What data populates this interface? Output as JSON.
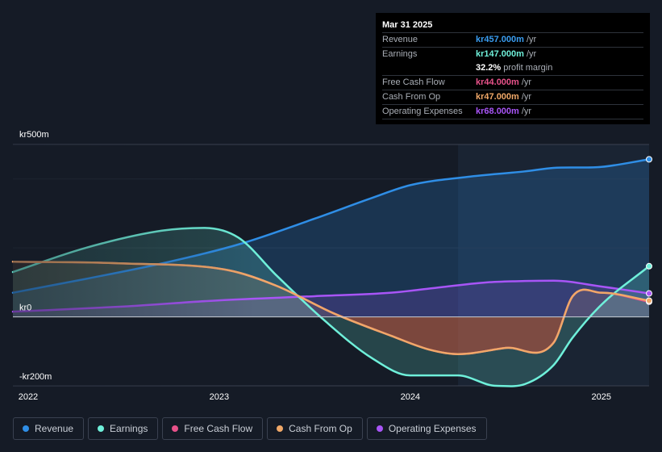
{
  "tooltip": {
    "date": "Mar 31 2025",
    "rows": [
      {
        "label": "Revenue",
        "value": "kr457.000m",
        "unit": "/yr",
        "color": "#3a9df0"
      },
      {
        "label": "Earnings",
        "value": "kr147.000m",
        "unit": "/yr",
        "color": "#6ff0da"
      },
      {
        "label": "",
        "value": "32.2%",
        "unit": "profit margin",
        "color": "#ffffff"
      },
      {
        "label": "Free Cash Flow",
        "value": "kr44.000m",
        "unit": "/yr",
        "color": "#e8528a"
      },
      {
        "label": "Cash From Op",
        "value": "kr47.000m",
        "unit": "/yr",
        "color": "#f0a868"
      },
      {
        "label": "Operating Expenses",
        "value": "kr68.000m",
        "unit": "/yr",
        "color": "#a855f7"
      }
    ]
  },
  "legend": [
    {
      "label": "Revenue",
      "color": "#2f8ee6"
    },
    {
      "label": "Earnings",
      "color": "#6ff0da"
    },
    {
      "label": "Free Cash Flow",
      "color": "#e8528a"
    },
    {
      "label": "Cash From Op",
      "color": "#f0a868"
    },
    {
      "label": "Operating Expenses",
      "color": "#a855f7"
    }
  ],
  "chart_data": {
    "type": "area",
    "title": "",
    "currency": "kr",
    "y_tick_labels": [
      "kr500m",
      "kr0",
      "-kr200m"
    ],
    "x_tick_labels": [
      "2022",
      "2023",
      "2024",
      "2025"
    ],
    "ylim": [
      -200,
      500
    ],
    "xlim": [
      2021.92,
      2025.25
    ],
    "x_ticks": [
      2022,
      2023,
      2024,
      2025
    ],
    "y_ticks": [
      500,
      0,
      -200
    ],
    "highlight_start": 2024.25,
    "series": [
      {
        "name": "Revenue",
        "color": "#2f8ee6",
        "x": [
          2021.92,
          2022.3,
          2022.7,
          2023.1,
          2023.5,
          2023.8,
          2024.0,
          2024.3,
          2024.6,
          2024.75,
          2025.0,
          2025.25
        ],
        "values": [
          70,
          110,
          155,
          210,
          285,
          345,
          382,
          406,
          422,
          432,
          435,
          457
        ]
      },
      {
        "name": "Earnings",
        "color": "#6ff0da",
        "x": [
          2021.92,
          2022.3,
          2022.7,
          2022.92,
          2023.1,
          2023.3,
          2023.55,
          2023.8,
          2024.0,
          2024.25,
          2024.45,
          2024.6,
          2024.75,
          2024.85,
          2025.0,
          2025.25
        ],
        "values": [
          130,
          200,
          250,
          258,
          230,
          120,
          -10,
          -120,
          -170,
          -170,
          -200,
          -195,
          -140,
          -60,
          35,
          147
        ]
      },
      {
        "name": "Free Cash Flow",
        "color": "#e8528a",
        "x": [
          2021.92,
          2022.5,
          2023.05,
          2023.3,
          2023.6,
          2023.9,
          2024.1,
          2024.25,
          2024.5,
          2024.75,
          2024.85,
          2025.0,
          2025.25
        ],
        "values": [
          160,
          155,
          135,
          90,
          10,
          -55,
          -95,
          -108,
          -90,
          -75,
          60,
          70,
          44
        ]
      },
      {
        "name": "Cash From Op",
        "color": "#f0a868",
        "x": [
          2021.92,
          2022.5,
          2023.05,
          2023.3,
          2023.6,
          2023.9,
          2024.1,
          2024.25,
          2024.5,
          2024.75,
          2024.85,
          2025.0,
          2025.25
        ],
        "values": [
          160,
          155,
          135,
          90,
          10,
          -55,
          -95,
          -108,
          -90,
          -75,
          60,
          70,
          47
        ]
      },
      {
        "name": "Operating Expenses",
        "color": "#a855f7",
        "x": [
          2021.92,
          2022.5,
          2023.0,
          2023.5,
          2023.9,
          2024.1,
          2024.4,
          2024.6,
          2024.75,
          2025.0,
          2025.25
        ],
        "values": [
          15,
          30,
          48,
          60,
          70,
          82,
          100,
          104,
          105,
          88,
          68
        ]
      }
    ]
  }
}
